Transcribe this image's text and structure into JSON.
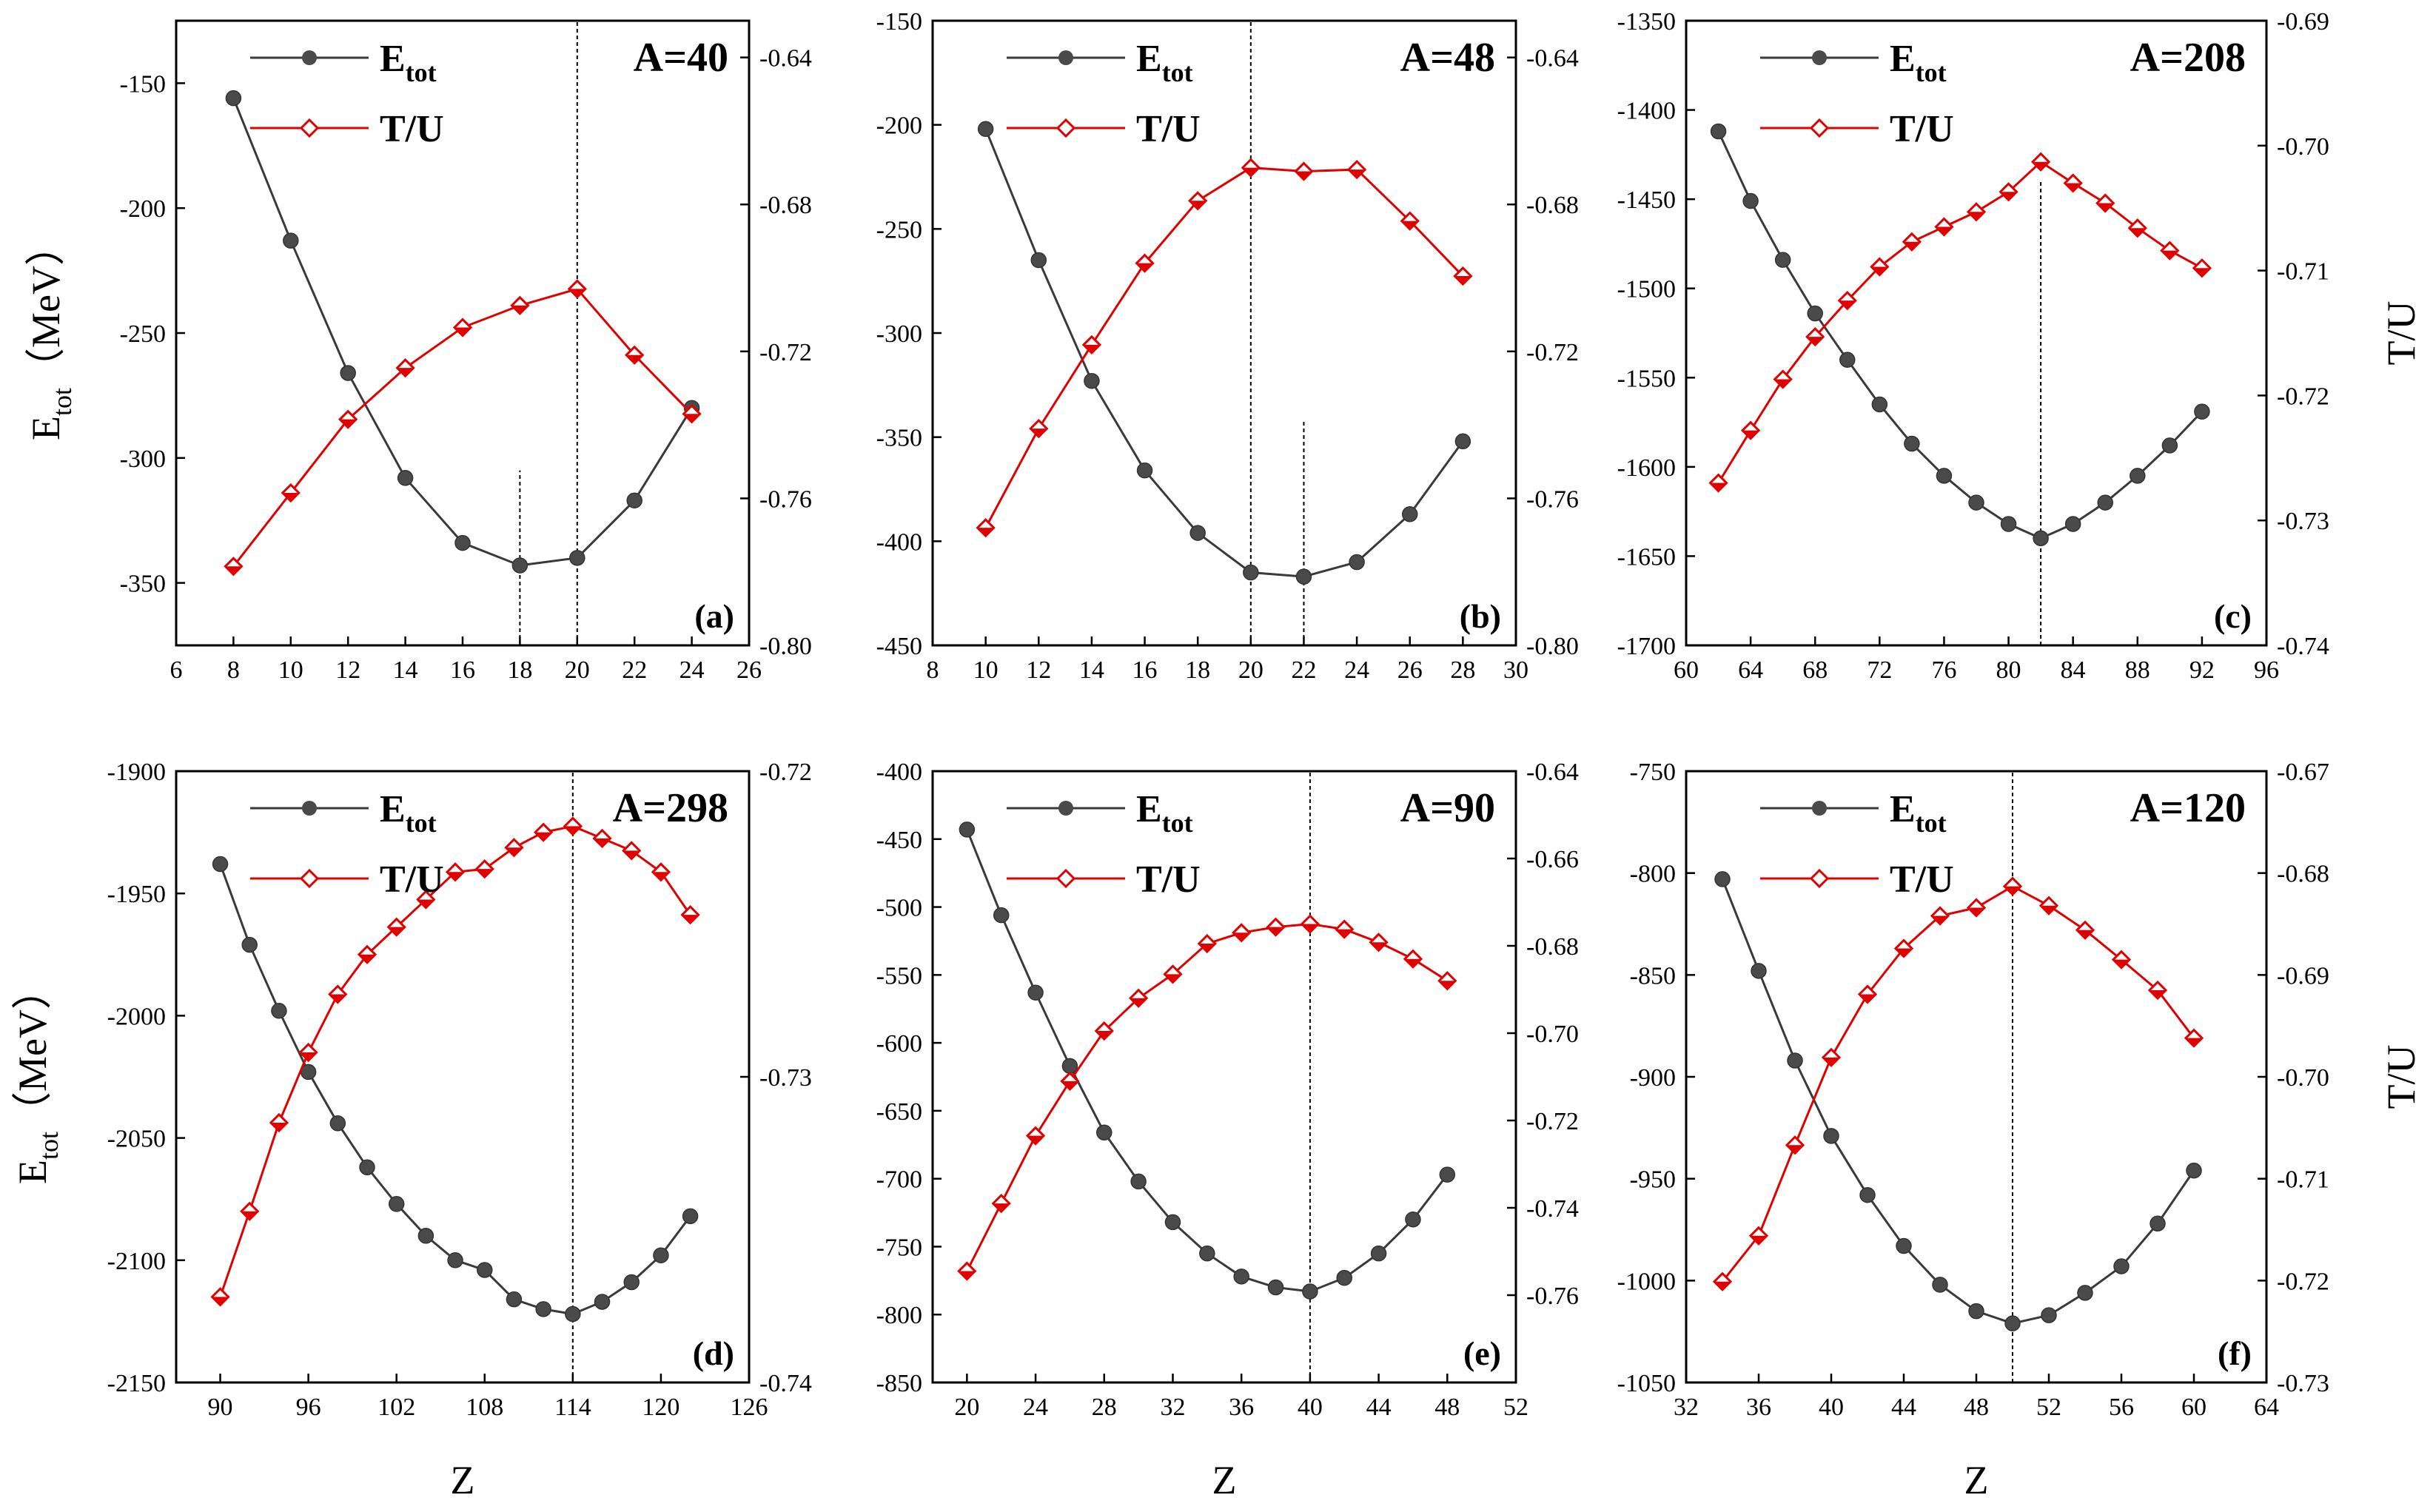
{
  "figure": {
    "legend": {
      "etot_main": "E",
      "etot_sub": "tot",
      "tu": "T/U"
    },
    "left_axis_label": {
      "main": "E",
      "sub": "tot",
      "unit": "（MeV）"
    },
    "right_axis_label": "T/U",
    "x_axis_label": "Z"
  },
  "chart_data": [
    {
      "type": "line",
      "panel_label": "(a)",
      "title": "A=40",
      "xlabel": "Z",
      "ylabel": "Etot（MeV）",
      "y2label": "T/U",
      "xlim": [
        6,
        26
      ],
      "xticks": [
        6,
        8,
        10,
        12,
        14,
        16,
        18,
        20,
        22,
        24,
        26
      ],
      "ylim": [
        -375,
        -125
      ],
      "yticks": [
        -150,
        -200,
        -250,
        -300,
        -350
      ],
      "y2lim": [
        -0.8,
        -0.63
      ],
      "y2ticks": [
        -0.64,
        -0.68,
        -0.72,
        -0.76,
        -0.8
      ],
      "x": [
        8,
        10,
        12,
        14,
        16,
        18,
        20,
        22,
        24
      ],
      "series": [
        {
          "name": "Etot",
          "axis": "left",
          "color": "#3a3a3a",
          "marker": "circle",
          "values": [
            -156,
            -213,
            -266,
            -308,
            -334,
            -343,
            -340,
            -317,
            -280
          ]
        },
        {
          "name": "T/U",
          "axis": "right",
          "color": "#e00000",
          "marker": "diamond",
          "values": [
            -0.7785,
            -0.7585,
            -0.7385,
            -0.7245,
            -0.7135,
            -0.7075,
            -0.703,
            -0.721,
            -0.737
          ]
        }
      ],
      "vlines": [
        {
          "x": 20,
          "y_from": -375,
          "y_to": -125
        },
        {
          "x": 18,
          "y_from": -375,
          "y_to": -305
        }
      ]
    },
    {
      "type": "line",
      "panel_label": "(b)",
      "title": "A=48",
      "xlabel": "Z",
      "ylabel": "Etot（MeV）",
      "y2label": "T/U",
      "xlim": [
        8,
        30
      ],
      "xticks": [
        8,
        10,
        12,
        14,
        16,
        18,
        20,
        22,
        24,
        26,
        28,
        30
      ],
      "ylim": [
        -450,
        -150
      ],
      "yticks": [
        -150,
        -200,
        -250,
        -300,
        -350,
        -400,
        -450
      ],
      "y2lim": [
        -0.8,
        -0.63
      ],
      "y2ticks": [
        -0.64,
        -0.68,
        -0.72,
        -0.76,
        -0.8
      ],
      "x": [
        10,
        12,
        14,
        16,
        18,
        20,
        22,
        24,
        26,
        28
      ],
      "series": [
        {
          "name": "Etot",
          "axis": "left",
          "color": "#3a3a3a",
          "marker": "circle",
          "values": [
            -202,
            -265,
            -323,
            -366,
            -396,
            -415,
            -417,
            -410,
            -387,
            -352
          ]
        },
        {
          "name": "T/U",
          "axis": "right",
          "color": "#e00000",
          "marker": "diamond",
          "values": [
            -0.768,
            -0.741,
            -0.7182,
            -0.696,
            -0.679,
            -0.67,
            -0.671,
            -0.6705,
            -0.6845,
            -0.6995
          ]
        }
      ],
      "vlines": [
        {
          "x": 20,
          "y_from": -450,
          "y_to": -150
        },
        {
          "x": 22,
          "y_from": -450,
          "y_to": -342
        }
      ]
    },
    {
      "type": "line",
      "panel_label": "(c)",
      "title": "A=208",
      "xlabel": "Z",
      "ylabel": "Etot（MeV）",
      "y2label": "T/U",
      "xlim": [
        60,
        96
      ],
      "xticks": [
        60,
        64,
        68,
        72,
        76,
        80,
        84,
        88,
        92,
        96
      ],
      "ylim": [
        -1700,
        -1350
      ],
      "yticks": [
        -1350,
        -1400,
        -1450,
        -1500,
        -1550,
        -1600,
        -1650,
        -1700
      ],
      "y2lim": [
        -0.74,
        -0.69
      ],
      "y2ticks": [
        -0.69,
        -0.7,
        -0.71,
        -0.72,
        -0.73,
        -0.74
      ],
      "x": [
        62,
        64,
        66,
        68,
        70,
        72,
        74,
        76,
        78,
        80,
        82,
        84,
        86,
        88,
        90,
        92
      ],
      "series": [
        {
          "name": "Etot",
          "axis": "left",
          "color": "#3a3a3a",
          "marker": "circle",
          "values": [
            -1412,
            -1451,
            -1484,
            -1514,
            -1540,
            -1565,
            -1587,
            -1605,
            -1620,
            -1632,
            -1640,
            -1632,
            -1620,
            -1605,
            -1588,
            -1569
          ]
        },
        {
          "name": "T/U",
          "axis": "right",
          "color": "#e00000",
          "marker": "diamond",
          "values": [
            -0.727,
            -0.7228,
            -0.7187,
            -0.7153,
            -0.7124,
            -0.7097,
            -0.7077,
            -0.7065,
            -0.7053,
            -0.7037,
            -0.7013,
            -0.703,
            -0.7046,
            -0.7066,
            -0.7084,
            -0.7098
          ]
        }
      ],
      "vlines": [
        {
          "x": 82,
          "y_from": -1700,
          "y_to": -1440
        }
      ]
    },
    {
      "type": "line",
      "panel_label": "(d)",
      "title": "A=298",
      "xlabel": "Z",
      "ylabel": "Etot（MeV）",
      "y2label": "T/U",
      "xlim": [
        87,
        126
      ],
      "xticks": [
        90,
        96,
        102,
        108,
        114,
        120,
        126
      ],
      "ylim": [
        -2150,
        -1900
      ],
      "yticks": [
        -1900,
        -1950,
        -2000,
        -2050,
        -2100,
        -2150
      ],
      "y2lim": [
        -0.74,
        -0.72
      ],
      "y2ticks": [
        -0.72,
        -0.73,
        -0.74
      ],
      "x": [
        90,
        92,
        94,
        96,
        98,
        100,
        102,
        104,
        106,
        108,
        110,
        112,
        114,
        116,
        118,
        120,
        122
      ],
      "series": [
        {
          "name": "Etot",
          "axis": "left",
          "color": "#3a3a3a",
          "marker": "circle",
          "values": [
            -1938,
            -1971,
            -1998,
            -2023,
            -2044,
            -2062,
            -2077,
            -2090,
            -2100,
            -2104,
            -2116,
            -2120,
            -2122,
            -2117,
            -2109,
            -2098,
            -2082
          ]
        },
        {
          "name": "T/U",
          "axis": "right",
          "color": "#e00000",
          "marker": "diamond",
          "values": [
            -0.7372,
            -0.7344,
            -0.7315,
            -0.7292,
            -0.7273,
            -0.726,
            -0.7251,
            -0.7242,
            -0.7233,
            -0.7232,
            -0.7225,
            -0.722,
            -0.7218,
            -0.7222,
            -0.7226,
            -0.7233,
            -0.7247
          ]
        }
      ],
      "vlines": [
        {
          "x": 114,
          "y_from": -2150,
          "y_to": -1900
        }
      ]
    },
    {
      "type": "line",
      "panel_label": "(e)",
      "title": "A=90",
      "xlabel": "Z",
      "ylabel": "Etot（MeV）",
      "y2label": "T/U",
      "xlim": [
        18,
        52
      ],
      "xticks": [
        20,
        24,
        28,
        32,
        36,
        40,
        44,
        48,
        52
      ],
      "ylim": [
        -850,
        -400
      ],
      "yticks": [
        -400,
        -450,
        -500,
        -550,
        -600,
        -650,
        -700,
        -750,
        -800,
        -850
      ],
      "y2lim": [
        -0.78,
        -0.64
      ],
      "y2ticks": [
        -0.64,
        -0.66,
        -0.68,
        -0.7,
        -0.72,
        -0.74,
        -0.76
      ],
      "x": [
        20,
        22,
        24,
        26,
        28,
        30,
        32,
        34,
        36,
        38,
        40,
        42,
        44,
        46,
        48
      ],
      "series": [
        {
          "name": "Etot",
          "axis": "left",
          "color": "#3a3a3a",
          "marker": "circle",
          "values": [
            -443,
            -506,
            -563,
            -617,
            -666,
            -702,
            -732,
            -755,
            -772,
            -780,
            -783,
            -773,
            -755,
            -730,
            -697
          ]
        },
        {
          "name": "T/U",
          "axis": "right",
          "color": "#e00000",
          "marker": "diamond",
          "values": [
            -0.7545,
            -0.739,
            -0.7235,
            -0.711,
            -0.6995,
            -0.692,
            -0.6865,
            -0.6795,
            -0.677,
            -0.6757,
            -0.675,
            -0.6762,
            -0.6792,
            -0.683,
            -0.688
          ]
        }
      ],
      "vlines": [
        {
          "x": 40,
          "y_from": -850,
          "y_to": -400
        }
      ]
    },
    {
      "type": "line",
      "panel_label": "(f)",
      "title": "A=120",
      "xlabel": "Z",
      "ylabel": "Etot（MeV）",
      "y2label": "T/U",
      "xlim": [
        32,
        64
      ],
      "xticks": [
        32,
        36,
        40,
        44,
        48,
        52,
        56,
        60,
        64
      ],
      "ylim": [
        -1050,
        -750
      ],
      "yticks": [
        -750,
        -800,
        -850,
        -900,
        -950,
        -1000,
        -1050
      ],
      "y2lim": [
        -0.73,
        -0.67
      ],
      "y2ticks": [
        -0.67,
        -0.68,
        -0.69,
        -0.7,
        -0.71,
        -0.72,
        -0.73
      ],
      "x": [
        34,
        36,
        38,
        40,
        42,
        44,
        46,
        48,
        50,
        52,
        54,
        56,
        58,
        60
      ],
      "series": [
        {
          "name": "Etot",
          "axis": "left",
          "color": "#3a3a3a",
          "marker": "circle",
          "values": [
            -803,
            -848,
            -892,
            -929,
            -958,
            -983,
            -1002,
            -1015,
            -1021,
            -1017,
            -1006,
            -993,
            -972,
            -946
          ]
        },
        {
          "name": "T/U",
          "axis": "right",
          "color": "#e00000",
          "marker": "diamond",
          "values": [
            -0.7201,
            -0.7156,
            -0.7067,
            -0.6981,
            -0.6919,
            -0.6874,
            -0.6842,
            -0.6834,
            -0.6813,
            -0.6832,
            -0.6856,
            -0.6885,
            -0.6915,
            -0.6962
          ]
        }
      ],
      "vlines": [
        {
          "x": 50,
          "y_from": -1050,
          "y_to": -750
        }
      ]
    }
  ]
}
